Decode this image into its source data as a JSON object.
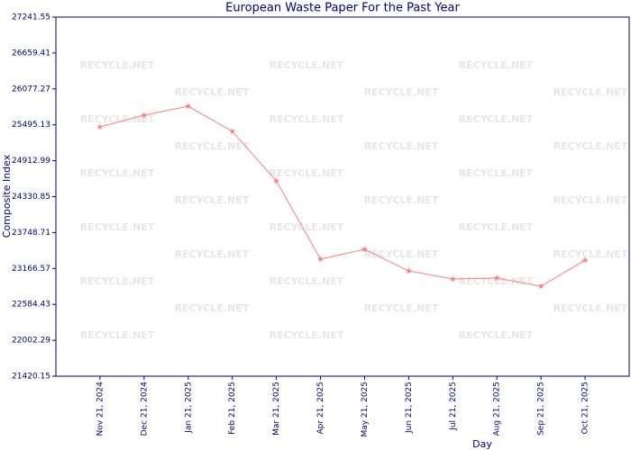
{
  "chart_data": {
    "type": "line",
    "title": "European Waste Paper For the Past Year",
    "x_label": "Day",
    "y_label": "Composite Index",
    "watermark": "RECYCLE.NET",
    "categories": [
      "Nov 21, 2024",
      "Dec 21, 2024",
      "Jan 21, 2025",
      "Feb 21, 2025",
      "Mar 21, 2025",
      "Apr 21, 2025",
      "May 21, 2025",
      "Jun 21, 2025",
      "Jul 21, 2025",
      "Aug 21, 2025",
      "Sep 21, 2025",
      "Oct 21, 2025"
    ],
    "series": [
      {
        "name": "Composite Index",
        "color": "#ff7f7f",
        "values": [
          25461,
          25651,
          25797,
          25389,
          24586,
          23317,
          23477,
          23127,
          22996,
          23011,
          22879,
          23302
        ]
      }
    ],
    "ylim": [
      21420.15,
      27241.55
    ],
    "yticks": [
      21420.15,
      22002.29,
      22584.43,
      23166.57,
      23748.71,
      24330.85,
      24912.99,
      25495.13,
      26077.27,
      26659.41,
      27241.55
    ]
  }
}
